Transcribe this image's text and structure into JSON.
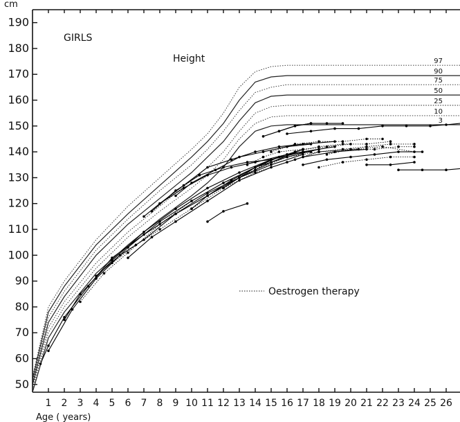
{
  "chart_data": {
    "type": "line",
    "title": "GIRLS",
    "subtitle": "Height",
    "y_unit": "cm",
    "xlabel": "Age ( years)",
    "xlim": [
      0,
      27
    ],
    "ylim": [
      47,
      195
    ],
    "y_ticks": [
      50,
      60,
      70,
      80,
      90,
      100,
      110,
      120,
      130,
      140,
      150,
      160,
      170,
      180,
      190
    ],
    "y_tick_labels": [
      "50",
      "60",
      "70",
      "80",
      "90",
      "100",
      "110",
      "120",
      "130",
      "140",
      "150",
      "160",
      "170",
      "180",
      "190"
    ],
    "x_ticks": [
      1,
      2,
      3,
      4,
      5,
      6,
      7,
      8,
      9,
      10,
      11,
      12,
      13,
      14,
      15,
      16,
      17,
      18,
      19,
      20,
      21,
      22,
      23,
      24,
      25,
      26
    ],
    "x_tick_labels": [
      "1",
      "2",
      "3",
      "4",
      "5",
      "6",
      "7",
      "8",
      "9",
      "10",
      "11",
      "12",
      "13",
      "14",
      "15",
      "16",
      "17",
      "18",
      "19",
      "20",
      "21",
      "22",
      "23",
      "24",
      "25",
      "26"
    ],
    "legend": {
      "label": "Oestrogen therapy",
      "style": "dotted"
    },
    "percentiles": [
      {
        "label": "97",
        "style": "dotted",
        "x": [
          0.0,
          1,
          2,
          4,
          6,
          8,
          10,
          11,
          12,
          13,
          14,
          15,
          16,
          18,
          27
        ],
        "y": [
          53,
          80,
          90,
          106,
          119,
          130,
          141,
          147,
          155,
          165,
          171,
          173,
          173.5,
          173.5,
          173.5
        ]
      },
      {
        "label": "90",
        "style": "solid",
        "x": [
          0.0,
          1,
          2,
          4,
          6,
          8,
          10,
          11,
          12,
          13,
          14,
          15,
          16,
          18,
          27
        ],
        "y": [
          52,
          78,
          88,
          104,
          116,
          127,
          138,
          144,
          151,
          160,
          167,
          169,
          169.5,
          169.5,
          169.5
        ]
      },
      {
        "label": "75",
        "style": "dotted",
        "x": [
          0.0,
          1,
          2,
          4,
          6,
          8,
          10,
          11,
          12,
          13,
          14,
          15,
          16,
          18,
          27
        ],
        "y": [
          51,
          76,
          86,
          102,
          114,
          125,
          135,
          141,
          148,
          156,
          163,
          165,
          166,
          166,
          166
        ]
      },
      {
        "label": "50",
        "style": "solid",
        "x": [
          0.0,
          1,
          2,
          4,
          6,
          8,
          10,
          11,
          12,
          13,
          14,
          15,
          16,
          18,
          27
        ],
        "y": [
          50,
          74,
          84,
          100,
          112,
          122,
          132,
          138,
          144,
          152,
          159,
          161.5,
          162,
          162,
          162
        ]
      },
      {
        "label": "25",
        "style": "dotted",
        "x": [
          0.0,
          1,
          2,
          4,
          6,
          8,
          10,
          11,
          12,
          13,
          14,
          15,
          16,
          18,
          27
        ],
        "y": [
          49,
          72,
          82,
          97,
          109,
          119,
          129,
          134,
          140,
          148,
          155,
          157.5,
          158,
          158,
          158
        ]
      },
      {
        "label": "10",
        "style": "dotted",
        "x": [
          0.0,
          1,
          2,
          4,
          6,
          8,
          10,
          11,
          12,
          13,
          14,
          15,
          16,
          18,
          27
        ],
        "y": [
          48,
          70,
          80,
          95,
          107,
          117,
          126,
          131,
          137,
          145,
          151,
          153.5,
          154,
          154,
          154
        ]
      },
      {
        "label": "3",
        "style": "solid",
        "x": [
          0.0,
          1,
          2,
          4,
          6,
          8,
          10,
          11,
          12,
          13,
          14,
          15,
          16,
          18,
          27
        ],
        "y": [
          47,
          68,
          78,
          93,
          104,
          114,
          123,
          128,
          134,
          142,
          148,
          150,
          150.5,
          150.5,
          150.5
        ]
      }
    ],
    "patients": [
      {
        "x": [
          0.5,
          1.0,
          2.0,
          3.5,
          5.0,
          7.0,
          9.0,
          11.0,
          13.0,
          15.0,
          17.0
        ],
        "y": [
          58,
          65,
          76,
          88,
          99,
          108,
          116,
          123,
          130,
          136,
          141
        ],
        "style": "solid"
      },
      {
        "x": [
          1.0,
          2.5,
          4.0,
          6.0,
          8.0,
          10.0,
          12.0,
          14.0,
          16.0,
          18.0
        ],
        "y": [
          63,
          79,
          91,
          103,
          113,
          121,
          128,
          134,
          138,
          141
        ],
        "style": "solid"
      },
      {
        "x": [
          2.0,
          3.0,
          5.0,
          7.0,
          9.0,
          11.0,
          13.0,
          15.0,
          17.0,
          19.0
        ],
        "y": [
          75,
          85,
          98,
          109,
          118,
          126,
          132,
          137,
          140,
          142
        ],
        "style": "solid"
      },
      {
        "x": [
          3.0,
          4.5,
          6.0,
          8.0,
          10.0,
          12.0,
          14.0,
          16.0,
          18.0,
          20.5
        ],
        "y": [
          82,
          93,
          101,
          112,
          121,
          128,
          133,
          138,
          140,
          141
        ],
        "style": "dotted"
      },
      {
        "x": [
          4.0,
          5.5,
          7.0,
          9.0,
          11.0,
          13.0,
          15.0,
          17.0
        ],
        "y": [
          92,
          100,
          106,
          116,
          124,
          130,
          135,
          139
        ],
        "style": "solid"
      },
      {
        "x": [
          5.0,
          6.5,
          8.0,
          10.0,
          12.0,
          14.0,
          16.0,
          18.0,
          20.0,
          22.0,
          24.0
        ],
        "y": [
          97,
          104,
          110,
          118,
          126,
          132,
          136,
          140,
          141,
          142,
          140
        ],
        "style": "dotted"
      },
      {
        "x": [
          6.0,
          7.5,
          9.0,
          11.0,
          13.0,
          15.0,
          17.0,
          19.0,
          21.0
        ],
        "y": [
          99,
          107,
          113,
          121,
          129,
          134,
          138,
          140,
          141
        ],
        "style": "solid"
      },
      {
        "x": [
          7.0,
          8.0,
          9.5,
          11.0,
          12.5,
          14.0,
          16.0,
          18.0
        ],
        "y": [
          115,
          120,
          126,
          131,
          134,
          136,
          139,
          141
        ],
        "style": "solid"
      },
      {
        "x": [
          7.5,
          9.0,
          10.5,
          12.0,
          13.5,
          15.0
        ],
        "y": [
          117,
          125,
          131,
          134,
          136,
          137
        ],
        "style": "solid"
      },
      {
        "x": [
          8.0,
          9.5,
          11.0,
          12.5,
          14.0,
          15.5,
          17.0,
          19.0
        ],
        "y": [
          120,
          127,
          134,
          137,
          140,
          142,
          143,
          144
        ],
        "style": "solid"
      },
      {
        "x": [
          9.0,
          10.0,
          11.5,
          13.0,
          14.5,
          16.0,
          17.5
        ],
        "y": [
          123,
          128,
          133,
          138,
          140,
          142,
          143
        ],
        "style": "solid"
      },
      {
        "x": [
          10.0,
          11.0,
          12.5,
          14.0,
          15.5,
          17.0
        ],
        "y": [
          118,
          123,
          129,
          134,
          138,
          141
        ],
        "style": "solid"
      },
      {
        "x": [
          11.0,
          12.0,
          13.5
        ],
        "y": [
          113,
          117,
          120
        ],
        "style": "solid"
      },
      {
        "x": [
          12.0,
          13.0,
          14.0,
          15.0,
          16.0,
          17.5
        ],
        "y": [
          126,
          130,
          134,
          137,
          139,
          140
        ],
        "style": "solid"
      },
      {
        "x": [
          13.5,
          14.5,
          15.5,
          17.0,
          18.5,
          20.0
        ],
        "y": [
          135,
          138,
          140,
          141,
          142,
          143
        ],
        "style": "dotted"
      },
      {
        "x": [
          14.0,
          15.0,
          16.5,
          18.0,
          19.5,
          21.0,
          22.5
        ],
        "y": [
          133,
          137,
          140,
          142,
          143,
          143,
          144
        ],
        "style": "dotted"
      },
      {
        "x": [
          14.5,
          15.5,
          16.5,
          17.5
        ],
        "y": [
          146,
          148,
          150,
          151
        ],
        "style": "solid"
      },
      {
        "x": [
          15.5,
          16.5,
          17.5,
          18.5,
          19.5
        ],
        "y": [
          148,
          150,
          151,
          151,
          151
        ],
        "style": "solid"
      },
      {
        "x": [
          16.0,
          17.5,
          19.0,
          20.5,
          22.0,
          23.5,
          25.0,
          26.0,
          27.0
        ],
        "y": [
          147,
          148,
          149,
          149,
          150,
          150,
          150,
          150.5,
          151
        ],
        "style": "solid"
      },
      {
        "x": [
          15.0,
          16.5,
          18.0,
          19.5,
          21.0,
          22.0
        ],
        "y": [
          140,
          143,
          144,
          144,
          145,
          145
        ],
        "style": "dotted"
      },
      {
        "x": [
          16.5,
          18.0,
          19.5,
          21.0,
          22.5,
          24.0
        ],
        "y": [
          137,
          140,
          141,
          142,
          143,
          143
        ],
        "style": "dotted"
      },
      {
        "x": [
          17.0,
          18.5,
          20.0,
          21.5,
          23.0,
          24.5
        ],
        "y": [
          135,
          137,
          138,
          139,
          140,
          140
        ],
        "style": "solid"
      },
      {
        "x": [
          18.0,
          19.5,
          21.0,
          22.5,
          24.0
        ],
        "y": [
          134,
          136,
          137,
          138,
          138
        ],
        "style": "dotted"
      },
      {
        "x": [
          21.0,
          22.5,
          24.0
        ],
        "y": [
          135,
          135,
          136
        ],
        "style": "solid"
      },
      {
        "x": [
          23.0,
          24.5,
          26.0,
          27.0
        ],
        "y": [
          133,
          133,
          133,
          133.5
        ],
        "style": "solid"
      },
      {
        "x": [
          18.5,
          20.0,
          21.5,
          23.0,
          24.0
        ],
        "y": [
          139,
          141,
          141,
          142,
          142
        ],
        "style": "dotted"
      }
    ]
  }
}
